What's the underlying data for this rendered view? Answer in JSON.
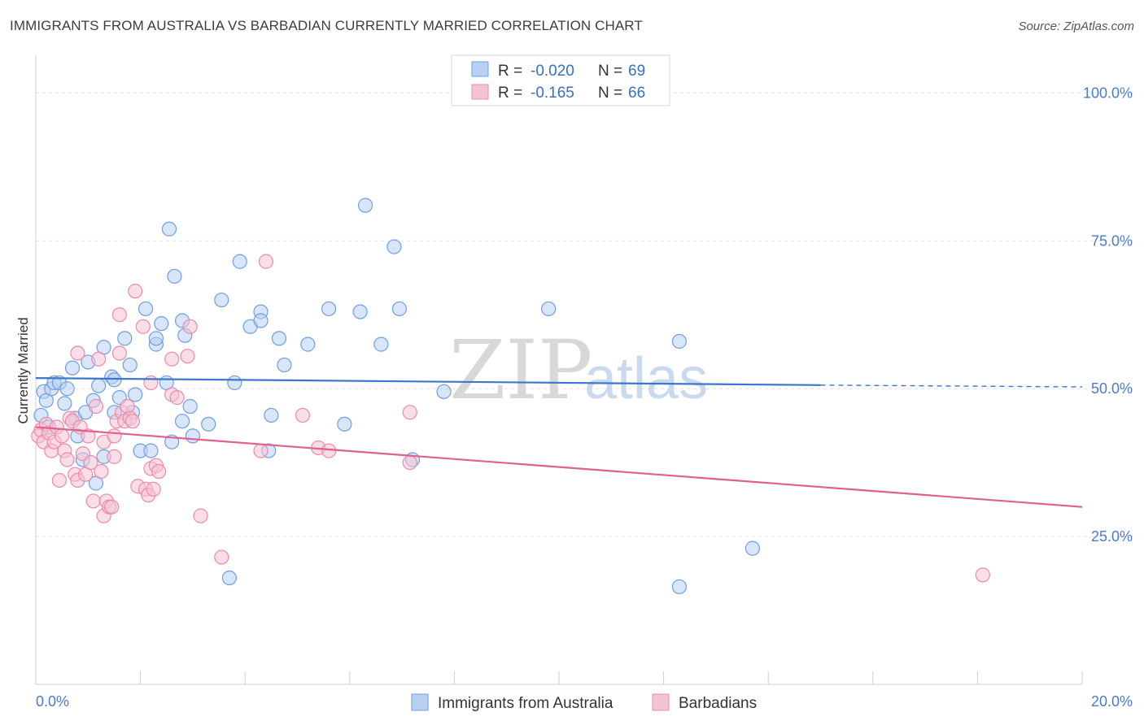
{
  "chart_data": {
    "type": "scatter",
    "title": "IMMIGRANTS FROM AUSTRALIA VS BARBADIAN CURRENTLY MARRIED CORRELATION CHART",
    "source": "Source: ZipAtlas.com",
    "xlabel": "",
    "ylabel": "Currently Married",
    "xlim": [
      0,
      20
    ],
    "ylim": [
      0,
      105
    ],
    "x_ticks": [
      "0.0%",
      "20.0%"
    ],
    "y_ticks": [
      {
        "value": 25,
        "label": "25.0%"
      },
      {
        "value": 50,
        "label": "50.0%"
      },
      {
        "value": 75,
        "label": "75.0%"
      },
      {
        "value": 100,
        "label": "100.0%"
      }
    ],
    "grid": true,
    "legend_position": "bottom-center",
    "watermark": {
      "zip": "ZIP",
      "atlas": "atlas"
    },
    "stats": [
      {
        "r_label": "R =",
        "r_value": "-0.020",
        "n_label": "N =",
        "n_value": "69"
      },
      {
        "r_label": "R =",
        "r_value": "-0.165",
        "n_label": "N =",
        "n_value": "66"
      }
    ],
    "series": [
      {
        "name": "Immigrants from Australia",
        "color": "#6f9fe0",
        "fill": "#b9d0f2",
        "line_color": "#3a78cc",
        "trend": {
          "x0": 0,
          "y0": 51.8,
          "x1": 15.0,
          "y1": 50.6,
          "dash_to": 20,
          "dash_y": 50.3
        },
        "points": [
          [
            0.1,
            45.5
          ],
          [
            0.15,
            49.5
          ],
          [
            0.2,
            48.0
          ],
          [
            0.3,
            50.0
          ],
          [
            0.25,
            43.5
          ],
          [
            0.35,
            51.0
          ],
          [
            0.45,
            51.0
          ],
          [
            0.55,
            47.5
          ],
          [
            0.6,
            50.0
          ],
          [
            0.7,
            53.5
          ],
          [
            0.75,
            45.0
          ],
          [
            0.8,
            42.0
          ],
          [
            0.9,
            38.0
          ],
          [
            0.95,
            46.0
          ],
          [
            1.0,
            54.5
          ],
          [
            1.1,
            48.0
          ],
          [
            1.15,
            34.0
          ],
          [
            1.2,
            50.5
          ],
          [
            1.3,
            38.5
          ],
          [
            1.3,
            57.0
          ],
          [
            1.45,
            52.0
          ],
          [
            1.5,
            51.5
          ],
          [
            1.5,
            46.0
          ],
          [
            1.6,
            48.5
          ],
          [
            1.7,
            58.5
          ],
          [
            1.8,
            54.0
          ],
          [
            1.85,
            46.0
          ],
          [
            1.9,
            49.0
          ],
          [
            2.0,
            39.5
          ],
          [
            2.1,
            63.5
          ],
          [
            2.2,
            39.5
          ],
          [
            2.3,
            57.5
          ],
          [
            2.3,
            58.5
          ],
          [
            2.4,
            61.0
          ],
          [
            2.5,
            51.0
          ],
          [
            2.55,
            77.0
          ],
          [
            2.6,
            41.0
          ],
          [
            2.65,
            69.0
          ],
          [
            2.8,
            44.5
          ],
          [
            2.8,
            61.5
          ],
          [
            2.85,
            59.0
          ],
          [
            2.95,
            47.0
          ],
          [
            3.0,
            42.0
          ],
          [
            3.3,
            44.0
          ],
          [
            3.55,
            65.0
          ],
          [
            3.8,
            51.0
          ],
          [
            3.9,
            71.5
          ],
          [
            3.7,
            18.0
          ],
          [
            4.1,
            60.5
          ],
          [
            4.3,
            63.0
          ],
          [
            4.3,
            61.5
          ],
          [
            4.5,
            45.5
          ],
          [
            4.45,
            39.5
          ],
          [
            4.65,
            58.5
          ],
          [
            4.75,
            54.0
          ],
          [
            5.2,
            57.5
          ],
          [
            5.6,
            63.5
          ],
          [
            5.9,
            44.0
          ],
          [
            6.2,
            63.0
          ],
          [
            6.3,
            81.0
          ],
          [
            6.6,
            57.5
          ],
          [
            6.85,
            74.0
          ],
          [
            6.95,
            63.5
          ],
          [
            7.2,
            38.0
          ],
          [
            7.8,
            49.5
          ],
          [
            9.8,
            63.5
          ],
          [
            12.3,
            58.0
          ],
          [
            12.3,
            16.5
          ],
          [
            13.7,
            23.0
          ]
        ]
      },
      {
        "name": "Barbadians",
        "color": "#e98bab",
        "fill": "#f6c3d4",
        "line_color": "#e0608e",
        "trend": {
          "x0": 0,
          "y0": 43.5,
          "x1": 20.0,
          "y1": 30.0
        },
        "points": [
          [
            0.05,
            42.0
          ],
          [
            0.1,
            43.0
          ],
          [
            0.15,
            41.0
          ],
          [
            0.2,
            44.0
          ],
          [
            0.25,
            42.5
          ],
          [
            0.3,
            39.5
          ],
          [
            0.35,
            41.0
          ],
          [
            0.4,
            43.5
          ],
          [
            0.45,
            34.5
          ],
          [
            0.5,
            42.0
          ],
          [
            0.55,
            39.5
          ],
          [
            0.6,
            38.0
          ],
          [
            0.65,
            45.0
          ],
          [
            0.7,
            44.5
          ],
          [
            0.75,
            35.5
          ],
          [
            0.8,
            34.5
          ],
          [
            0.8,
            56.0
          ],
          [
            0.85,
            43.5
          ],
          [
            0.9,
            39.0
          ],
          [
            0.95,
            35.5
          ],
          [
            1.0,
            42.0
          ],
          [
            1.05,
            37.5
          ],
          [
            1.1,
            31.0
          ],
          [
            1.15,
            47.0
          ],
          [
            1.2,
            55.0
          ],
          [
            1.25,
            36.0
          ],
          [
            1.3,
            28.5
          ],
          [
            1.3,
            41.0
          ],
          [
            1.35,
            31.0
          ],
          [
            1.4,
            30.0
          ],
          [
            1.45,
            30.0
          ],
          [
            1.5,
            38.5
          ],
          [
            1.5,
            42.0
          ],
          [
            1.55,
            44.5
          ],
          [
            1.6,
            62.5
          ],
          [
            1.6,
            56.0
          ],
          [
            1.65,
            46.0
          ],
          [
            1.7,
            44.5
          ],
          [
            1.75,
            47.0
          ],
          [
            1.8,
            45.0
          ],
          [
            1.85,
            44.5
          ],
          [
            1.9,
            66.5
          ],
          [
            1.95,
            33.5
          ],
          [
            2.05,
            60.5
          ],
          [
            2.1,
            33.0
          ],
          [
            2.15,
            32.0
          ],
          [
            2.2,
            51.0
          ],
          [
            2.2,
            36.5
          ],
          [
            2.25,
            33.0
          ],
          [
            2.3,
            37.0
          ],
          [
            2.35,
            36.0
          ],
          [
            2.6,
            55.0
          ],
          [
            2.6,
            49.0
          ],
          [
            2.7,
            48.5
          ],
          [
            2.9,
            55.5
          ],
          [
            2.95,
            60.5
          ],
          [
            3.15,
            28.5
          ],
          [
            3.55,
            21.5
          ],
          [
            4.3,
            39.5
          ],
          [
            4.4,
            71.5
          ],
          [
            5.1,
            45.5
          ],
          [
            5.4,
            40.0
          ],
          [
            5.6,
            39.5
          ],
          [
            7.15,
            46.0
          ],
          [
            7.15,
            37.5
          ],
          [
            18.1,
            18.5
          ]
        ]
      }
    ]
  }
}
